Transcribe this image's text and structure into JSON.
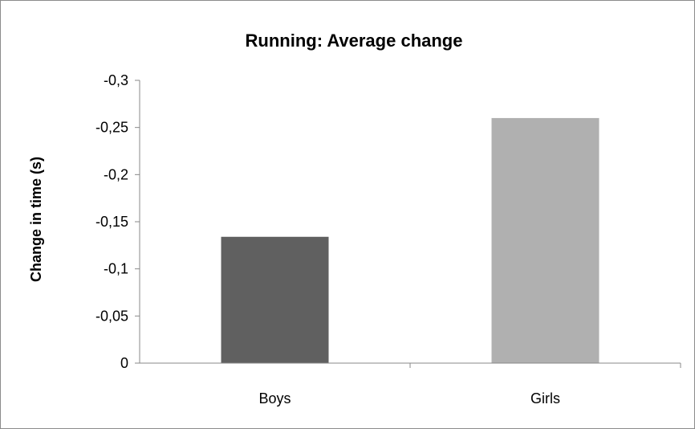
{
  "chart_data": {
    "type": "bar",
    "title": "Running: Average change",
    "xlabel": "",
    "ylabel": "Change in time (s)",
    "categories": [
      "Boys",
      "Girls"
    ],
    "values": [
      -0.134,
      -0.26
    ],
    "ylim": [
      0,
      -0.3
    ],
    "yticks": [
      0,
      -0.05,
      -0.1,
      -0.15,
      -0.2,
      -0.25,
      -0.3
    ],
    "ytick_labels": [
      "0",
      "-0,05",
      "-0,1",
      "-0,15",
      "-0,2",
      "-0,25",
      "-0,3"
    ],
    "axis_inverted": true,
    "grid": false,
    "legend": "none",
    "bar_colors": [
      "#606060",
      "#b0b0b0"
    ]
  }
}
